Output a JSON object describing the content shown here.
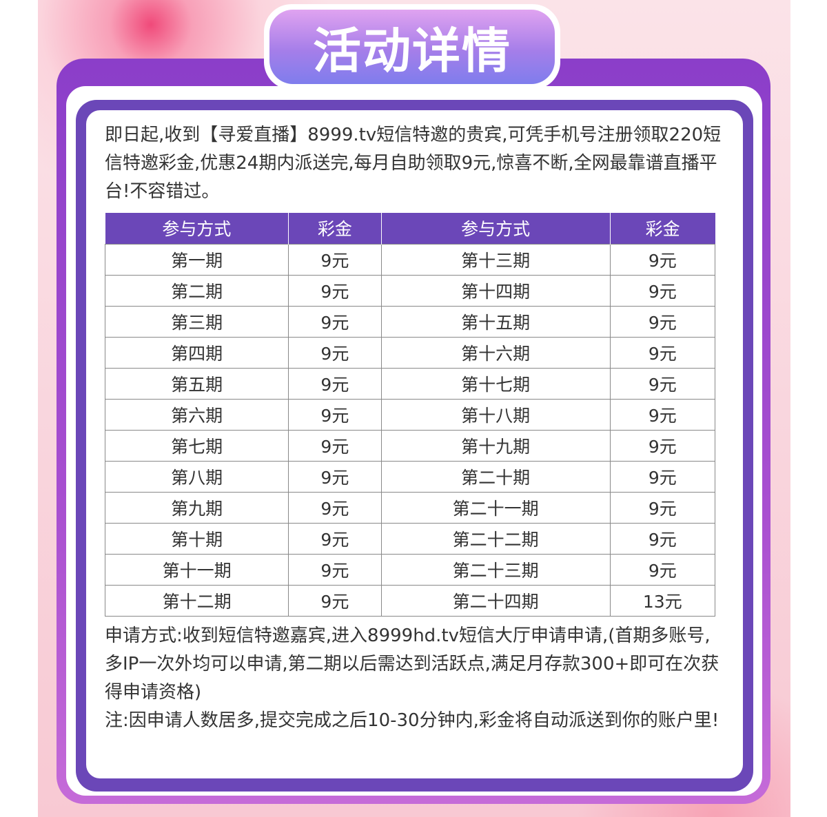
{
  "title": "活动详情",
  "intro": "即日起,收到【寻爱直播】8999.tv短信特邀的贵宾,可凭手机号注册领取220短信特邀彩金,优惠24期内派送完,每月自助领取9元,惊喜不断,全网最靠谱直播平台!不容错过。",
  "table": {
    "headers": [
      "参与方式",
      "彩金",
      "参与方式",
      "彩金"
    ],
    "rows": [
      [
        "第一期",
        "9元",
        "第十三期",
        "9元"
      ],
      [
        "第二期",
        "9元",
        "第十四期",
        "9元"
      ],
      [
        "第三期",
        "9元",
        "第十五期",
        "9元"
      ],
      [
        "第四期",
        "9元",
        "第十六期",
        "9元"
      ],
      [
        "第五期",
        "9元",
        "第十七期",
        "9元"
      ],
      [
        "第六期",
        "9元",
        "第十八期",
        "9元"
      ],
      [
        "第七期",
        "9元",
        "第十九期",
        "9元"
      ],
      [
        "第八期",
        "9元",
        "第二十期",
        "9元"
      ],
      [
        "第九期",
        "9元",
        "第二十一期",
        "9元"
      ],
      [
        "第十期",
        "9元",
        "第二十二期",
        "9元"
      ],
      [
        "第十一期",
        "9元",
        "第二十三期",
        "9元"
      ],
      [
        "第十二期",
        "9元",
        "第二十四期",
        "13元"
      ]
    ]
  },
  "apply": "申请方式:收到短信特邀嘉宾,进入8999hd.tv短信大厅申请申请,(首期多账号,多IP一次外均可以申请,第二期以后需达到活跃点,满足月存款300+即可在次获得申请资格)",
  "note": "注:因申请人数居多,提交完成之后10-30分钟内,彩金将自动派送到你的账户里!",
  "colors": {
    "purple": "#6b47b8",
    "frame": "#8b3ec9"
  }
}
